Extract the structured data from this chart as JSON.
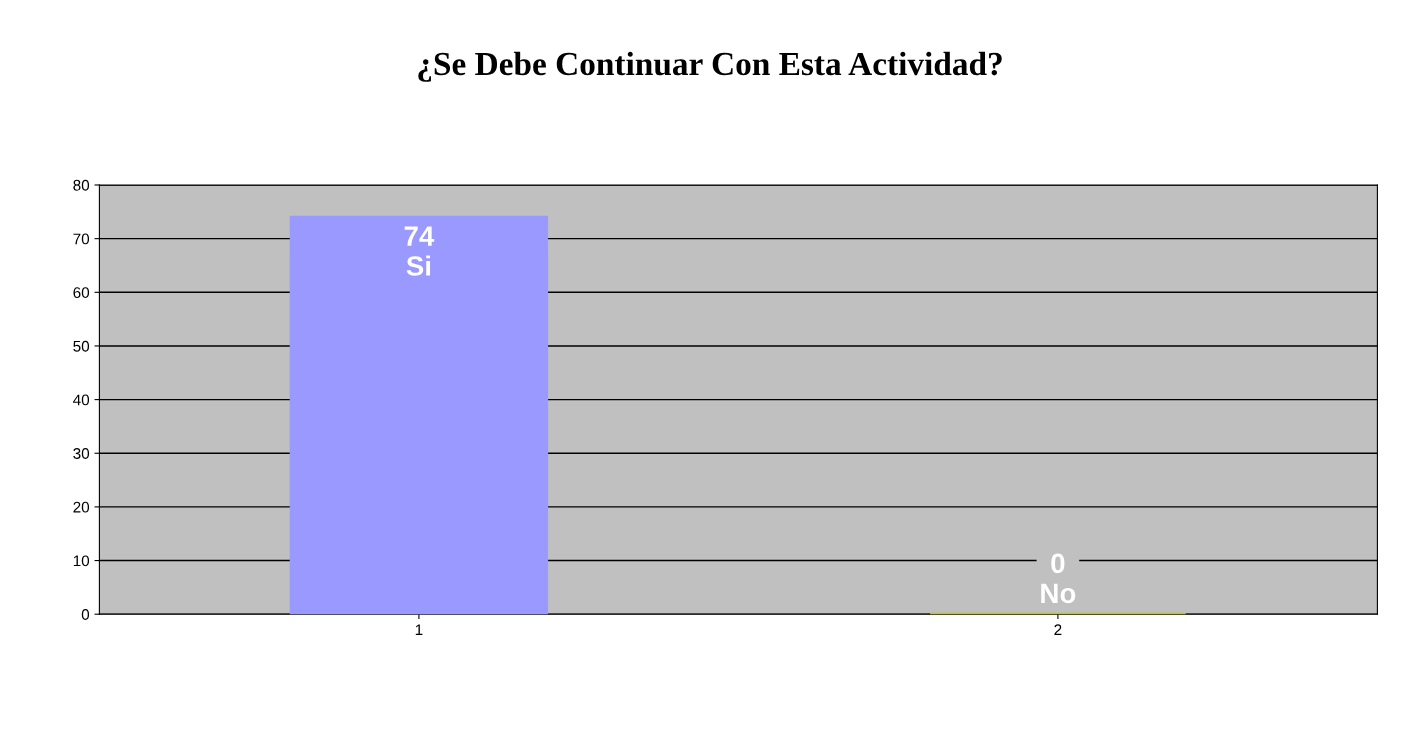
{
  "chart_data": {
    "type": "bar",
    "title": "¿Se Debe Continuar Con Esta Actividad?",
    "categories": [
      "1",
      "2"
    ],
    "values": [
      74,
      0
    ],
    "colors": [
      "#9999ff",
      "#c8c800"
    ],
    "value_labels": [
      "74\nSi",
      "0\nNo"
    ],
    "ylim": [
      0,
      80
    ],
    "yticks": [
      0,
      10,
      20,
      30,
      40,
      50,
      60,
      70,
      80
    ],
    "grid": "y",
    "legend": false
  }
}
